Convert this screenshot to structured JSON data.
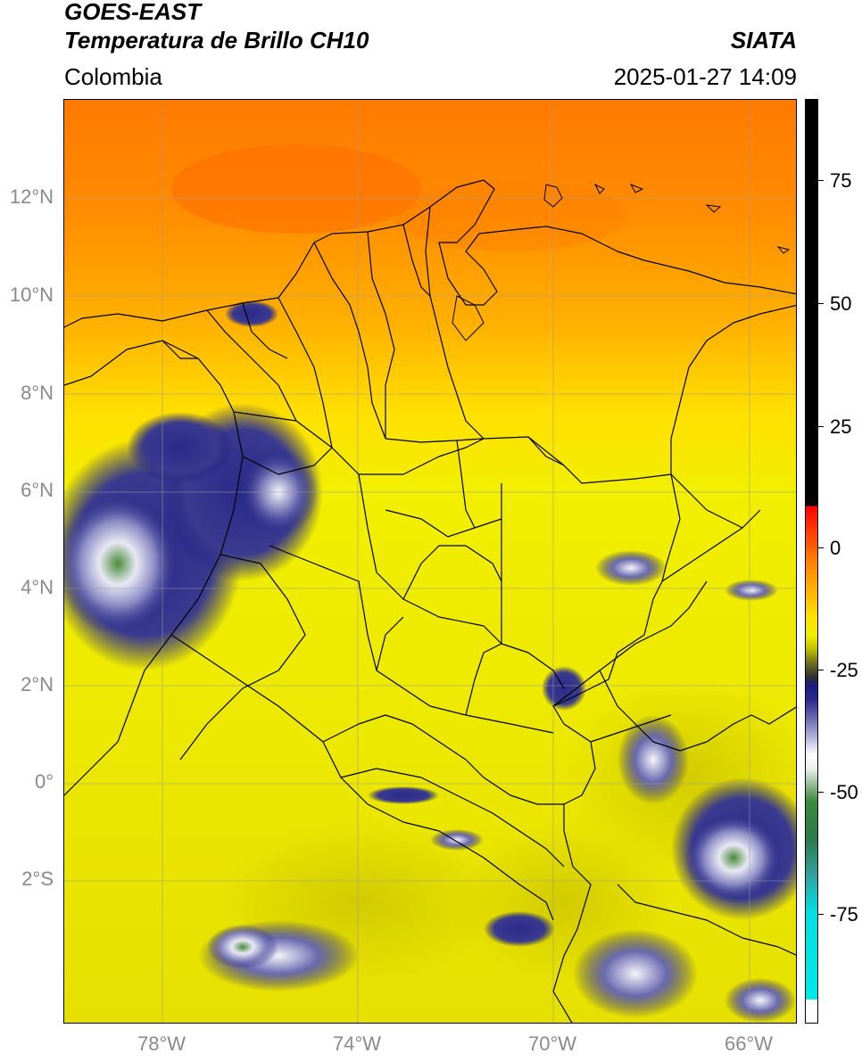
{
  "header": {
    "satellite": "GOES-EAST",
    "product": "Temperatura de Brillo CH10",
    "institution": "SIATA",
    "region": "Colombia",
    "datetime": "2025-01-27 14:09"
  },
  "map": {
    "lat_labels": [
      "12°N",
      "10°N",
      "8°N",
      "6°N",
      "4°N",
      "2°N",
      "0°",
      "2°S"
    ],
    "lon_labels": [
      "78°W",
      "74°W",
      "70°W",
      "66°W"
    ],
    "colors": {
      "warm": "#ff8000",
      "mid": "#ffd800",
      "cool": "#e8e400",
      "cloud_blue": "#1a1a80",
      "cloud_white": "#f2f2f8",
      "cloud_green": "#3c8a3c"
    }
  },
  "colorbar": {
    "ticks": [
      "75",
      "50",
      "25",
      "0",
      "-25",
      "-50",
      "-75"
    ],
    "units": ""
  }
}
